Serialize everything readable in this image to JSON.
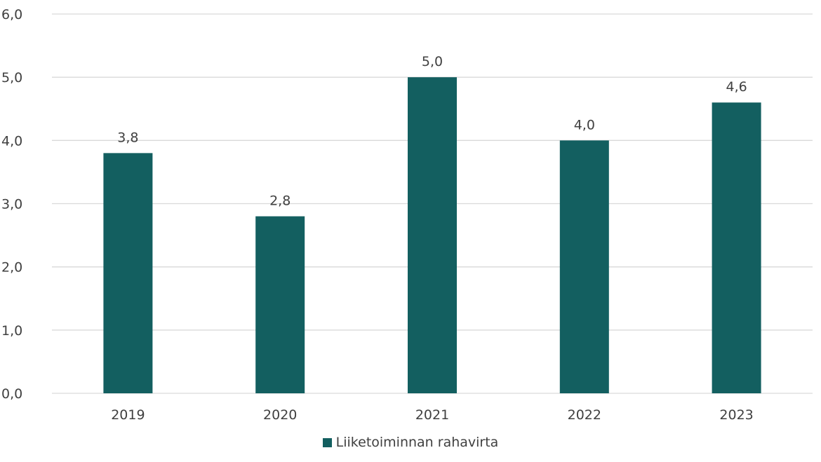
{
  "chart_data": {
    "type": "bar",
    "categories": [
      "2019",
      "2020",
      "2021",
      "2022",
      "2023"
    ],
    "series": [
      {
        "name": "Liiketoiminnan rahavirta",
        "values": [
          3.8,
          2.8,
          5.0,
          4.0,
          4.6
        ],
        "value_labels": [
          "3,8",
          "2,8",
          "5,0",
          "4,0",
          "4,6"
        ],
        "color": "#135f60"
      }
    ],
    "ylim": [
      0,
      6
    ],
    "yticks": [
      {
        "value": 0,
        "label": "0,0"
      },
      {
        "value": 1,
        "label": "1,0"
      },
      {
        "value": 2,
        "label": "2,0"
      },
      {
        "value": 3,
        "label": "3,0"
      },
      {
        "value": 4,
        "label": "4,0"
      },
      {
        "value": 5,
        "label": "5,0"
      },
      {
        "value": 6,
        "label": "6,0"
      }
    ],
    "grid": true,
    "legend_position": "bottom"
  }
}
